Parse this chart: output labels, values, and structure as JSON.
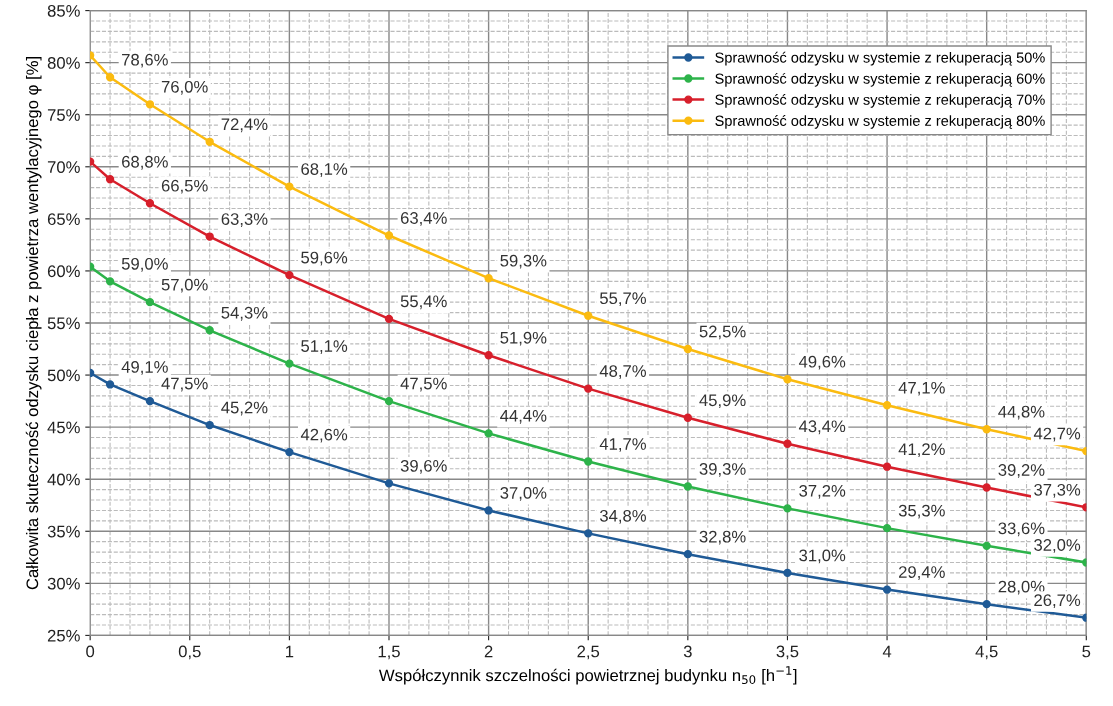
{
  "chart_data": {
    "type": "line",
    "xlabel": "Współczynnik szczelności powietrznej budynku n$_{50}$ [h$^{−1}$]",
    "ylabel": "Całkowita skuteczność odzysku ciepła z powietrza wentylacyjnego φ [%]",
    "x": [
      0,
      0.1,
      0.3,
      0.6,
      1,
      1.5,
      2,
      2.5,
      3,
      3.5,
      4,
      4.5,
      5
    ],
    "series": [
      {
        "name": "Sprawność odzysku w systemie z rekuperacją 50%",
        "color": "#1f5a96",
        "values": [
          50.2,
          49.1,
          47.5,
          45.2,
          42.6,
          39.6,
          37.0,
          34.8,
          32.8,
          31.0,
          29.4,
          28.0,
          26.7
        ],
        "value_labels": [
          null,
          "49,1%",
          "47,5%",
          "45,2%",
          "42,6%",
          "39,6%",
          "37,0%",
          "34,8%",
          "32,8%",
          "31,0%",
          "29,4%",
          "28,0%",
          "26,7%"
        ]
      },
      {
        "name": "Sprawność odzysku w systemie z rekuperacją 60%",
        "color": "#2db34a",
        "values": [
          60.4,
          59.0,
          57.0,
          54.3,
          51.1,
          47.5,
          44.4,
          41.7,
          39.3,
          37.2,
          35.3,
          33.6,
          32.0
        ],
        "value_labels": [
          null,
          "59,0%",
          "57,0%",
          "54,3%",
          "51,1%",
          "47,5%",
          "44,4%",
          "41,7%",
          "39,3%",
          "37,2%",
          "35,3%",
          "33,6%",
          "32,0%"
        ]
      },
      {
        "name": "Sprawność odzysku w systemie z rekuperacją 70%",
        "color": "#d71f2b",
        "values": [
          70.5,
          68.8,
          66.5,
          63.3,
          59.6,
          55.4,
          51.9,
          48.7,
          45.9,
          43.4,
          41.2,
          39.2,
          37.3
        ],
        "value_labels": [
          null,
          "68,8%",
          "66,5%",
          "63,3%",
          "59,6%",
          "55,4%",
          "51,9%",
          "48,7%",
          "45,9%",
          "43,4%",
          "41,2%",
          "39,2%",
          "37,3%"
        ]
      },
      {
        "name": "Sprawność odzysku w systemie z rekuperacją 80%",
        "color": "#fbbb10",
        "values": [
          80.7,
          78.6,
          76.0,
          72.4,
          68.1,
          63.4,
          59.3,
          55.7,
          52.5,
          49.6,
          47.1,
          44.8,
          42.7
        ],
        "value_labels": [
          null,
          "78,6%",
          "76,0%",
          "72,4%",
          "68,1%",
          "63,4%",
          "59,3%",
          "55,7%",
          "52,5%",
          "49,6%",
          "47,1%",
          "44,8%",
          "42,7%"
        ]
      }
    ],
    "xlim": [
      0,
      5
    ],
    "xticks": [
      0,
      {
        "value": 0.5,
        "label": "0,5"
      },
      1,
      {
        "value": 1.5,
        "label": "1,5"
      },
      2,
      {
        "value": 2.5,
        "label": "2,5"
      },
      3,
      {
        "value": 3.5,
        "label": "3,5"
      },
      4,
      {
        "value": 4.5,
        "label": "4,5"
      },
      5
    ],
    "ylim": [
      25,
      85
    ],
    "yticks": [
      {
        "value": 25,
        "label": "25%"
      },
      {
        "value": 30,
        "label": "30%"
      },
      {
        "value": 35,
        "label": "35%"
      },
      {
        "value": 40,
        "label": "40%"
      },
      {
        "value": 45,
        "label": "45%"
      },
      {
        "value": 50,
        "label": "50%"
      },
      {
        "value": 55,
        "label": "55%"
      },
      {
        "value": 60,
        "label": "60%"
      },
      {
        "value": 65,
        "label": "65%"
      },
      {
        "value": 70,
        "label": "70%"
      },
      {
        "value": 75,
        "label": "75%"
      },
      {
        "value": 80,
        "label": "80%"
      },
      {
        "value": 85,
        "label": "85%"
      }
    ],
    "grid": true,
    "legend": "top right",
    "marker": "circle",
    "line_style": "solid"
  }
}
